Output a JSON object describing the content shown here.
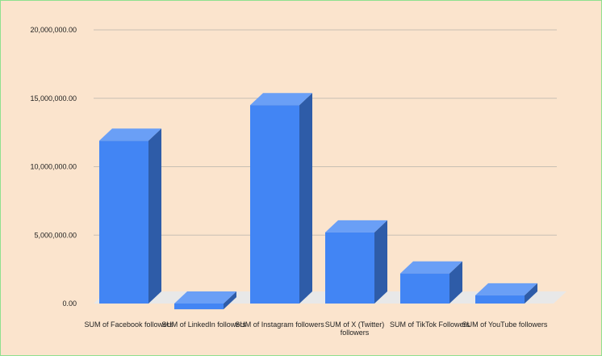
{
  "chart_data": {
    "type": "bar",
    "title": "",
    "xlabel": "",
    "ylabel": "",
    "categories": [
      "SUM of Facebook followers",
      "SUM of LinkedIn followers",
      "SUM of Instagram followers",
      "SUM of X (Twitter) followers",
      "SUM of TikTok Followers",
      "SUM of YouTube followers"
    ],
    "values": [
      11900000,
      -700000,
      14500000,
      5200000,
      2200000,
      600000
    ],
    "ylim": [
      0,
      20000000
    ],
    "yticks": [
      "0.00",
      "5,000,000.00",
      "10,000,000.00",
      "15,000,000.00",
      "20,000,000.00"
    ],
    "grid": true,
    "colors": {
      "bar_front": "#4285f4",
      "bar_top": "#6a9ff6",
      "bar_side": "#2e5ca8",
      "background": "#fbe4cd",
      "floor": "#e8e8e8"
    }
  }
}
